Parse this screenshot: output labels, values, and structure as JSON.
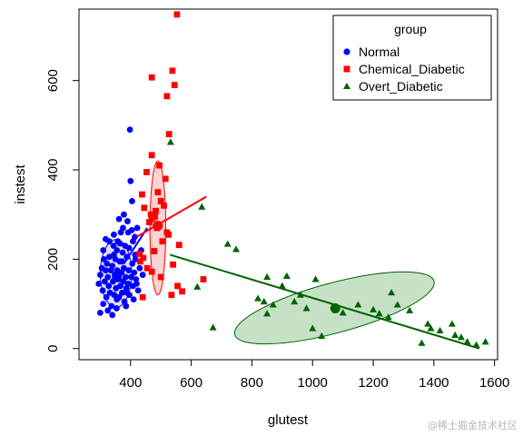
{
  "chart_data": {
    "type": "scatter",
    "xlabel": "glutest",
    "ylabel": "instest",
    "xlim": [
      230,
      1610
    ],
    "ylim": [
      -25,
      760
    ],
    "x_ticks": [
      400,
      600,
      800,
      1000,
      1200,
      1400,
      1600
    ],
    "y_ticks": [
      0,
      200,
      400,
      600
    ],
    "legend": {
      "title": "group",
      "position": "top-right"
    },
    "series": [
      {
        "name": "Normal",
        "color": "#0000ff",
        "marker": "circle",
        "points": [
          [
            295,
            145
          ],
          [
            300,
            165
          ],
          [
            305,
            180
          ],
          [
            308,
            130
          ],
          [
            310,
            220
          ],
          [
            312,
            200
          ],
          [
            315,
            150
          ],
          [
            318,
            175
          ],
          [
            320,
            115
          ],
          [
            322,
            190
          ],
          [
            325,
            160
          ],
          [
            328,
            140
          ],
          [
            330,
            205
          ],
          [
            332,
            125
          ],
          [
            335,
            175
          ],
          [
            337,
            95
          ],
          [
            340,
            185
          ],
          [
            342,
            150
          ],
          [
            344,
            230
          ],
          [
            346,
            120
          ],
          [
            348,
            165
          ],
          [
            350,
            200
          ],
          [
            352,
            135
          ],
          [
            354,
            90
          ],
          [
            356,
            175
          ],
          [
            358,
            240
          ],
          [
            360,
            155
          ],
          [
            362,
            115
          ],
          [
            364,
            195
          ],
          [
            366,
            140
          ],
          [
            368,
            260
          ],
          [
            370,
            170
          ],
          [
            372,
            125
          ],
          [
            374,
            215
          ],
          [
            376,
            150
          ],
          [
            378,
            180
          ],
          [
            380,
            105
          ],
          [
            382,
            230
          ],
          [
            384,
            160
          ],
          [
            386,
            135
          ],
          [
            388,
            205
          ],
          [
            390,
            285
          ],
          [
            392,
            145
          ],
          [
            394,
            175
          ],
          [
            396,
            120
          ],
          [
            398,
            490
          ],
          [
            400,
            375
          ],
          [
            402,
            160
          ],
          [
            404,
            265
          ],
          [
            406,
            190
          ],
          [
            408,
            140
          ],
          [
            410,
            110
          ],
          [
            412,
            170
          ],
          [
            414,
            250
          ],
          [
            416,
            200
          ],
          [
            418,
            155
          ],
          [
            300,
            80
          ],
          [
            310,
            100
          ],
          [
            325,
            85
          ],
          [
            340,
            75
          ],
          [
            355,
            110
          ],
          [
            365,
            235
          ],
          [
            375,
            270
          ],
          [
            385,
            95
          ],
          [
            395,
            225
          ],
          [
            405,
            330
          ],
          [
            415,
            210
          ],
          [
            420,
            145
          ],
          [
            430,
            180
          ],
          [
            425,
            130
          ],
          [
            435,
            220
          ],
          [
            440,
            165
          ],
          [
            318,
            245
          ],
          [
            345,
            255
          ],
          [
            362,
            290
          ],
          [
            378,
            300
          ],
          [
            392,
            260
          ],
          [
            408,
            240
          ],
          [
            422,
            270
          ],
          [
            345,
            210
          ],
          [
            330,
            240
          ],
          [
            355,
            220
          ],
          [
            372,
            195
          ],
          [
            388,
            125
          ]
        ],
        "fit_line": [
          [
            378,
            190
          ],
          [
            455,
            270
          ]
        ],
        "centroid": [
          355,
          160
        ],
        "ellipse": {
          "cx": 352,
          "cy": 168,
          "rx": 52,
          "ry": 76,
          "angle": 0
        }
      },
      {
        "name": "Chemical_Diabetic",
        "color": "#ff0000",
        "marker": "square",
        "points": [
          [
            553,
            748
          ],
          [
            538,
            622
          ],
          [
            470,
            607
          ],
          [
            545,
            590
          ],
          [
            520,
            565
          ],
          [
            527,
            480
          ],
          [
            470,
            433
          ],
          [
            495,
            410
          ],
          [
            453,
            395
          ],
          [
            515,
            380
          ],
          [
            438,
            345
          ],
          [
            500,
            330
          ],
          [
            483,
            308
          ],
          [
            510,
            320
          ],
          [
            467,
            300
          ],
          [
            462,
            283
          ],
          [
            487,
            270
          ],
          [
            520,
            260
          ],
          [
            560,
            232
          ],
          [
            478,
            218
          ],
          [
            430,
            212
          ],
          [
            442,
            203
          ],
          [
            432,
            195
          ],
          [
            540,
            188
          ],
          [
            455,
            180
          ],
          [
            470,
            172
          ],
          [
            500,
            160
          ],
          [
            640,
            155
          ],
          [
            555,
            140
          ],
          [
            570,
            128
          ],
          [
            535,
            120
          ],
          [
            440,
            115
          ],
          [
            470,
            290
          ],
          [
            480,
            295
          ],
          [
            525,
            255
          ],
          [
            505,
            240
          ],
          [
            490,
            350
          ],
          [
            445,
            315
          ]
        ],
        "fit_line": [
          [
            420,
            250
          ],
          [
            650,
            340
          ]
        ],
        "centroid": [
          490,
          275
        ],
        "ellipse": {
          "cx": 490,
          "cy": 270,
          "rx": 26,
          "ry": 150,
          "angle": 0
        }
      },
      {
        "name": "Overt_Diabetic",
        "color": "#006400",
        "marker": "triangle",
        "points": [
          [
            532,
            462
          ],
          [
            635,
            317
          ],
          [
            720,
            234
          ],
          [
            748,
            222
          ],
          [
            672,
            47
          ],
          [
            850,
            160
          ],
          [
            915,
            162
          ],
          [
            1010,
            155
          ],
          [
            840,
            105
          ],
          [
            870,
            98
          ],
          [
            940,
            105
          ],
          [
            980,
            90
          ],
          [
            1000,
            45
          ],
          [
            1030,
            28
          ],
          [
            850,
            78
          ],
          [
            1075,
            90
          ],
          [
            1150,
            98
          ],
          [
            1200,
            87
          ],
          [
            1220,
            78
          ],
          [
            1260,
            125
          ],
          [
            1280,
            98
          ],
          [
            1320,
            85
          ],
          [
            1380,
            55
          ],
          [
            1420,
            40
          ],
          [
            1460,
            55
          ],
          [
            1470,
            30
          ],
          [
            1490,
            25
          ],
          [
            1510,
            15
          ],
          [
            1540,
            8
          ],
          [
            1570,
            15
          ],
          [
            1390,
            45
          ],
          [
            1360,
            12
          ],
          [
            1250,
            70
          ],
          [
            1100,
            80
          ],
          [
            960,
            120
          ],
          [
            900,
            140
          ],
          [
            820,
            112
          ],
          [
            620,
            138
          ]
        ],
        "fit_line": [
          [
            530,
            210
          ],
          [
            1550,
            0
          ]
        ],
        "centroid": [
          1075,
          90
        ],
        "ellipse": {
          "cx": 1072,
          "cy": 91,
          "rx": 340,
          "ry": 56,
          "angle": -15
        }
      }
    ]
  },
  "watermark": "@稀土掘金技术社区"
}
